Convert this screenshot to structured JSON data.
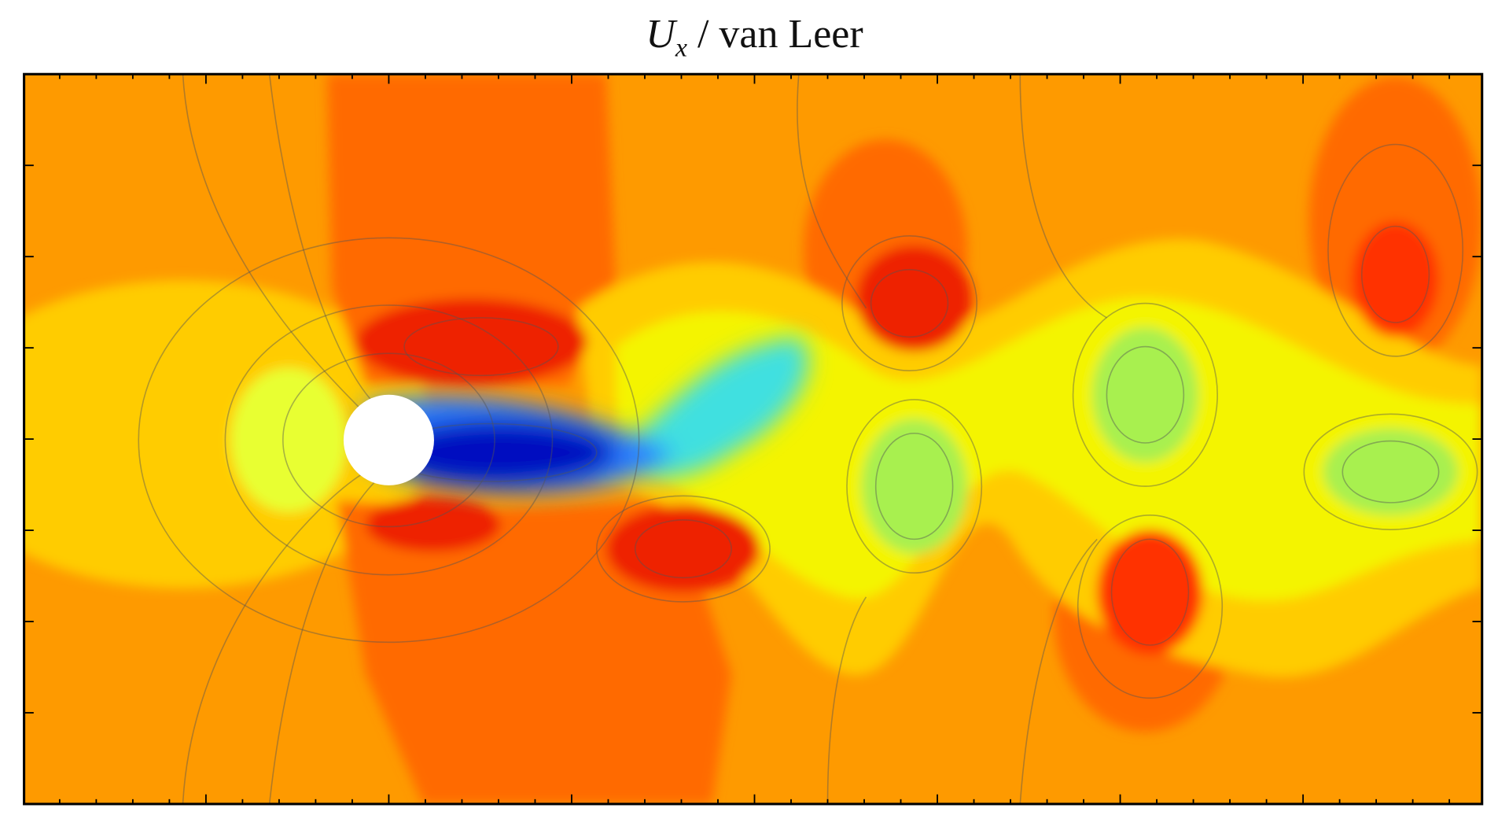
{
  "chart_data": {
    "type": "contour",
    "title": {
      "symbol": "U",
      "subscript": "x",
      "text": "/ van Leer"
    }
  }
}
